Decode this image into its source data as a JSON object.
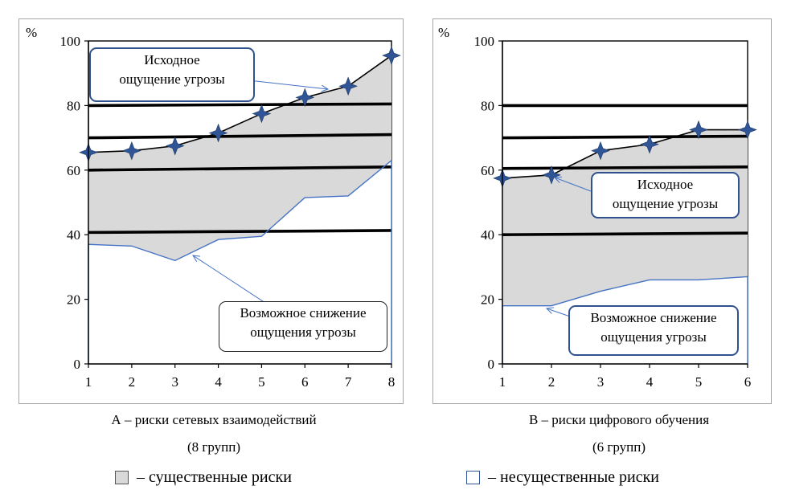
{
  "chart_data": [
    {
      "type": "area",
      "unit_label": "%",
      "x": [
        1,
        2,
        3,
        4,
        5,
        6,
        7,
        8
      ],
      "ylim": [
        0,
        100
      ],
      "yticks": [
        0,
        20,
        40,
        60,
        80,
        100
      ],
      "series": [
        {
          "values": [
            65.5,
            66,
            67.5,
            71.5,
            77.5,
            82.5,
            86,
            95.5
          ]
        },
        {
          "values": [
            37,
            36.5,
            32,
            38.5,
            39.5,
            51.5,
            52,
            63
          ]
        }
      ],
      "reference_lines": [
        {
          "y": [
            80,
            80.5
          ]
        },
        {
          "y": [
            70,
            71
          ]
        },
        {
          "y": [
            60,
            61
          ]
        },
        {
          "y": [
            40.7,
            41.3
          ]
        }
      ],
      "annotations": [
        {
          "text": [
            "Исходное",
            "ощущение угрозы"
          ]
        },
        {
          "text": [
            "Возможное снижение",
            "ощущения угрозы"
          ]
        }
      ],
      "caption": [
        "А – риски сетевых взаимодействий",
        "(8 групп)"
      ]
    },
    {
      "type": "area",
      "unit_label": "%",
      "x": [
        1,
        2,
        3,
        4,
        5,
        6
      ],
      "ylim": [
        0,
        100
      ],
      "yticks": [
        0,
        20,
        40,
        60,
        80,
        100
      ],
      "series": [
        {
          "values": [
            57.5,
            58.5,
            66,
            68,
            72.5,
            72.5
          ]
        },
        {
          "values": [
            18,
            18,
            22.5,
            26,
            26,
            27
          ]
        }
      ],
      "reference_lines": [
        {
          "y": [
            80,
            80
          ]
        },
        {
          "y": [
            70,
            70.5
          ]
        },
        {
          "y": [
            60.5,
            61
          ]
        },
        {
          "y": [
            40,
            40.5
          ]
        }
      ],
      "annotations": [
        {
          "text": [
            "Исходное",
            "ощущение угрозы"
          ]
        },
        {
          "text": [
            "Возможное снижение",
            "ощущения угрозы"
          ]
        }
      ],
      "caption": [
        "В – риски цифрового обучения",
        "(6 групп)"
      ]
    }
  ],
  "legend": [
    {
      "label": "– существенные риски",
      "color": "#d9d9d9"
    },
    {
      "label": "– несущественные риски",
      "color": "#ffffff"
    }
  ],
  "colors": {
    "band": "#d9d9d9",
    "marker": "#2f5597",
    "low_line": "#4472c4",
    "callout_border": "#2f528f"
  }
}
